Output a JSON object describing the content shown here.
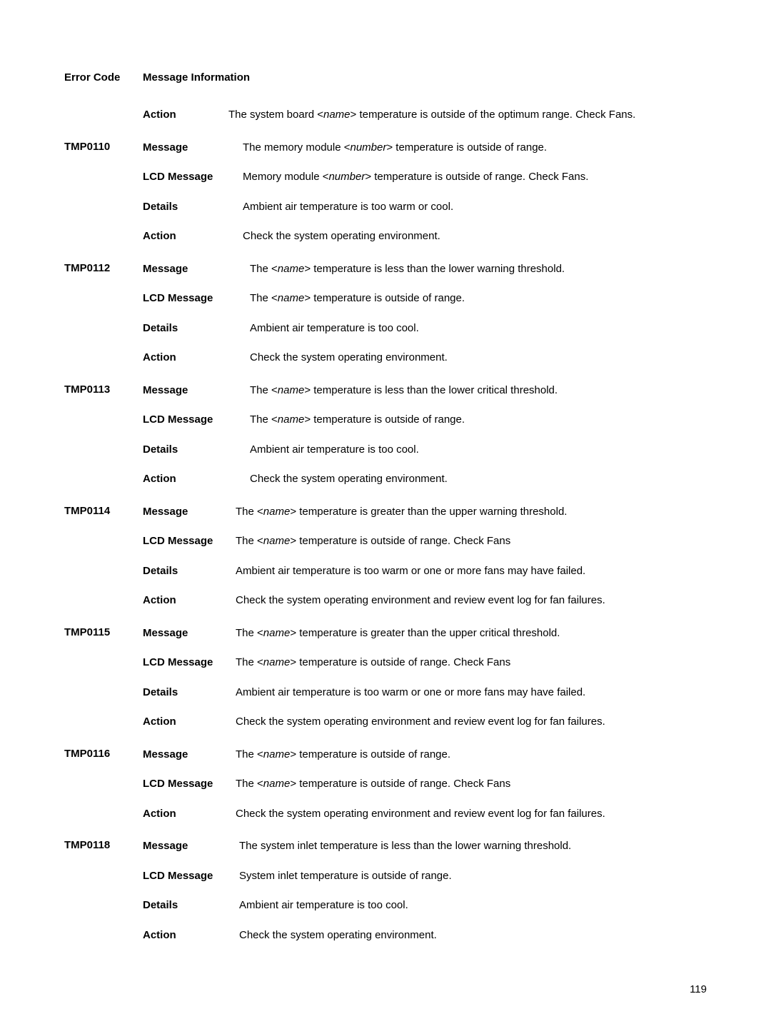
{
  "header": {
    "col1": "Error Code",
    "col2": "Message Information"
  },
  "orphan": {
    "action_label": "Action",
    "action_value_pre": "The system board <",
    "action_value_italic": "name",
    "action_value_post": "> temperature is outside of the optimum range. Check Fans."
  },
  "entries": [
    {
      "code": "TMP0110",
      "label_width": 140,
      "rows": [
        {
          "label": "Message",
          "pre": "The memory module <",
          "italic": "number",
          "post": "> temperature is outside of range."
        },
        {
          "label": "LCD Message",
          "pre": "Memory module <",
          "italic": "number",
          "post": "> temperature is outside of range. Check Fans."
        },
        {
          "label": "Details",
          "plain": "Ambient air temperature is too warm or cool."
        },
        {
          "label": "Action",
          "plain": "Check the system operating environment."
        }
      ]
    },
    {
      "code": "TMP0112",
      "label_width": 150,
      "rows": [
        {
          "label": "Message",
          "pre": "The <",
          "italic": "name",
          "post": "> temperature is less than the lower warning threshold."
        },
        {
          "label": "LCD Message",
          "pre": "The <",
          "italic": "name",
          "post": "> temperature is outside of range."
        },
        {
          "label": "Details",
          "plain": "Ambient air temperature is too cool."
        },
        {
          "label": "Action",
          "plain": "Check the system operating environment."
        }
      ]
    },
    {
      "code": "TMP0113",
      "label_width": 150,
      "rows": [
        {
          "label": "Message",
          "pre": "The <",
          "italic": "name",
          "post": "> temperature is less than the lower critical threshold."
        },
        {
          "label": "LCD Message",
          "pre": "The <",
          "italic": "name",
          "post": "> temperature is outside of range."
        },
        {
          "label": "Details",
          "plain": "Ambient air temperature is too cool."
        },
        {
          "label": "Action",
          "plain": "Check the system operating environment."
        }
      ]
    },
    {
      "code": "TMP0114",
      "label_width": 130,
      "rows": [
        {
          "label": "Message",
          "pre": "The <",
          "italic": "name",
          "post": "> temperature is greater than the upper warning threshold."
        },
        {
          "label": "LCD Message",
          "pre": "The <",
          "italic": "name",
          "post": "> temperature is outside of range. Check Fans"
        },
        {
          "label": "Details",
          "plain": "Ambient air temperature is too warm or one or more fans may have failed."
        },
        {
          "label": "Action",
          "plain": "Check the system operating environment and review event log for fan failures."
        }
      ]
    },
    {
      "code": "TMP0115",
      "label_width": 130,
      "rows": [
        {
          "label": "Message",
          "pre": "The <",
          "italic": "name",
          "post": "> temperature is greater than the upper critical threshold."
        },
        {
          "label": "LCD Message",
          "pre": "The <",
          "italic": "name",
          "post": "> temperature is outside of range. Check Fans"
        },
        {
          "label": "Details",
          "plain": "Ambient air temperature is too warm or one or more fans may have failed."
        },
        {
          "label": "Action",
          "plain": "Check the system operating environment and review event log for fan failures."
        }
      ]
    },
    {
      "code": "TMP0116",
      "label_width": 130,
      "rows": [
        {
          "label": "Message",
          "pre": "The <",
          "italic": "name",
          "post": "> temperature is outside of range."
        },
        {
          "label": "LCD Message",
          "pre": "The <",
          "italic": "name",
          "post": "> temperature is outside of range. Check Fans"
        },
        {
          "label": "Action",
          "plain": "Check the system operating environment and review event log for fan failures."
        }
      ]
    },
    {
      "code": "TMP0118",
      "label_width": 135,
      "rows": [
        {
          "label": "Message",
          "plain": "The system inlet temperature is less than the lower warning threshold."
        },
        {
          "label": "LCD Message",
          "plain": "System inlet temperature is outside of range."
        },
        {
          "label": "Details",
          "plain": "Ambient air temperature is too cool."
        },
        {
          "label": "Action",
          "plain": "Check the system operating environment."
        }
      ]
    }
  ],
  "page_number": "119"
}
